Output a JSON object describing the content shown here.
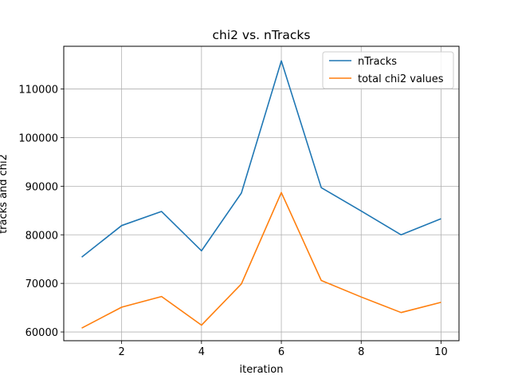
{
  "chart_data": {
    "type": "line",
    "title": "chi2 vs. nTracks",
    "xlabel": "iteration",
    "ylabel": "tracks and chi2",
    "x": [
      1,
      2,
      3,
      4,
      5,
      6,
      7,
      8,
      9,
      10
    ],
    "xticks": [
      2,
      4,
      6,
      8,
      10
    ],
    "yticks": [
      60000,
      70000,
      80000,
      90000,
      100000,
      110000
    ],
    "xlim": [
      0.55,
      10.45
    ],
    "ylim": [
      58200,
      118800
    ],
    "grid": true,
    "legend_position": "top-right",
    "series": [
      {
        "name": "nTracks",
        "color": "#1f77b4",
        "values": [
          75400,
          81900,
          84800,
          76700,
          88600,
          115800,
          89700,
          84900,
          80000,
          83300
        ]
      },
      {
        "name": "total chi2 values",
        "color": "#ff7f0e",
        "values": [
          60800,
          65100,
          67300,
          61400,
          69900,
          88700,
          70600,
          67200,
          64000,
          66100
        ]
      }
    ]
  }
}
